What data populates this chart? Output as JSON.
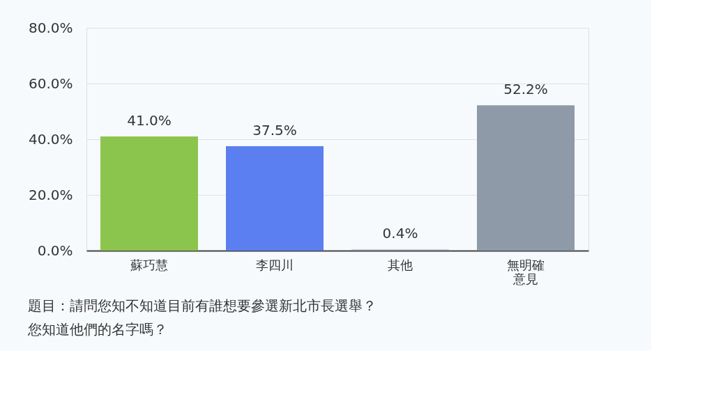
{
  "chart_data": {
    "type": "bar",
    "categories": [
      "蘇巧慧",
      "李四川",
      "其他",
      "無明確意見"
    ],
    "values": [
      41.0,
      37.5,
      0.4,
      52.2
    ],
    "colors": [
      "#8cc54e",
      "#5b7ef0",
      "#9aa0ab",
      "#8e9aa8"
    ],
    "value_labels": [
      "41.0%",
      "37.5%",
      "0.4%",
      "52.2%"
    ],
    "ylim": [
      0,
      80
    ],
    "yticks": [
      {
        "value": 0,
        "label": "0.0%"
      },
      {
        "value": 20,
        "label": "20.0%"
      },
      {
        "value": 40,
        "label": "40.0%"
      },
      {
        "value": 60,
        "label": "60.0%"
      },
      {
        "value": 80,
        "label": "80.0%"
      }
    ],
    "grid": "y",
    "annotations": [
      "題目：請問您知不知道目前有誰想要參選新北市長選舉？您知道他們的名字嗎？"
    ]
  }
}
